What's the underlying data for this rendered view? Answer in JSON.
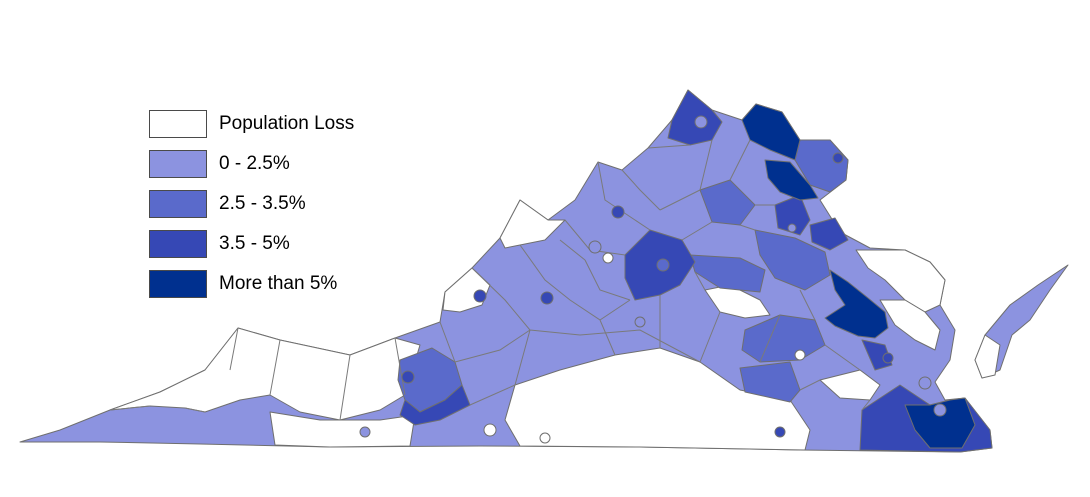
{
  "legend": {
    "items": [
      {
        "label": "Population Loss",
        "color": "#ffffff"
      },
      {
        "label": "0 - 2.5%",
        "color": "#8c93e0"
      },
      {
        "label": "2.5 - 3.5%",
        "color": "#5a6acb"
      },
      {
        "label": "3.5 - 5%",
        "color": "#3648b5"
      },
      {
        "label": "More than 5%",
        "color": "#00308f"
      }
    ]
  }
}
